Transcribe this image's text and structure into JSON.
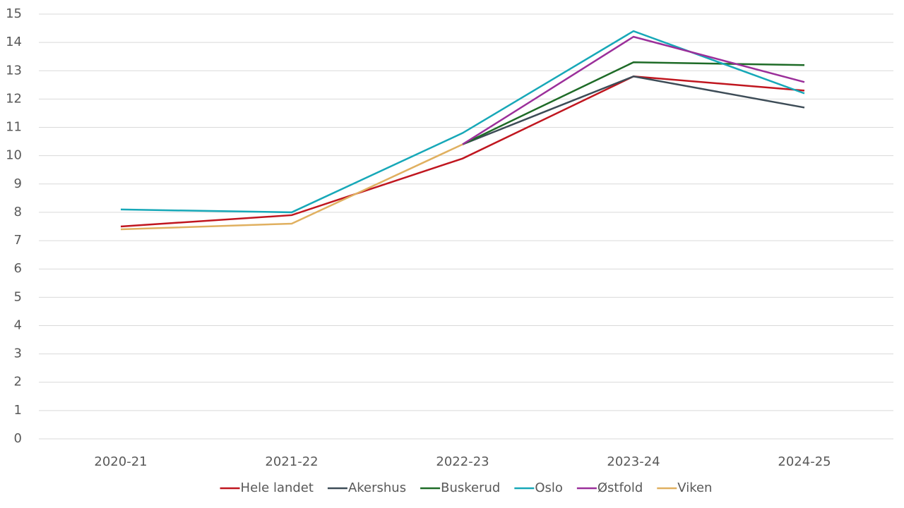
{
  "chart_data": {
    "type": "line",
    "categories": [
      "2020-21",
      "2021-22",
      "2022-23",
      "2023-24",
      "2024-25"
    ],
    "series": [
      {
        "name": "Hele landet",
        "color": "#c0161f",
        "values": [
          7.5,
          7.9,
          9.9,
          12.8,
          12.3
        ]
      },
      {
        "name": "Akershus",
        "color": "#3d4c57",
        "values": [
          null,
          null,
          10.4,
          12.8,
          11.7
        ]
      },
      {
        "name": "Buskerud",
        "color": "#1e6b27",
        "values": [
          null,
          null,
          10.4,
          13.3,
          13.2
        ]
      },
      {
        "name": "Oslo",
        "color": "#17a8b8",
        "values": [
          8.1,
          8.0,
          10.8,
          14.4,
          12.2
        ]
      },
      {
        "name": "Østfold",
        "color": "#9b2f9a",
        "values": [
          null,
          null,
          10.4,
          14.2,
          12.6
        ]
      },
      {
        "name": "Viken",
        "color": "#e0b060",
        "values": [
          7.4,
          7.6,
          10.4,
          null,
          null
        ]
      }
    ],
    "ylim": [
      0,
      15
    ],
    "yticks": [
      0,
      1,
      2,
      3,
      4,
      5,
      6,
      7,
      8,
      9,
      10,
      11,
      12,
      13,
      14,
      15
    ],
    "grid": true,
    "legend": "bottom"
  }
}
